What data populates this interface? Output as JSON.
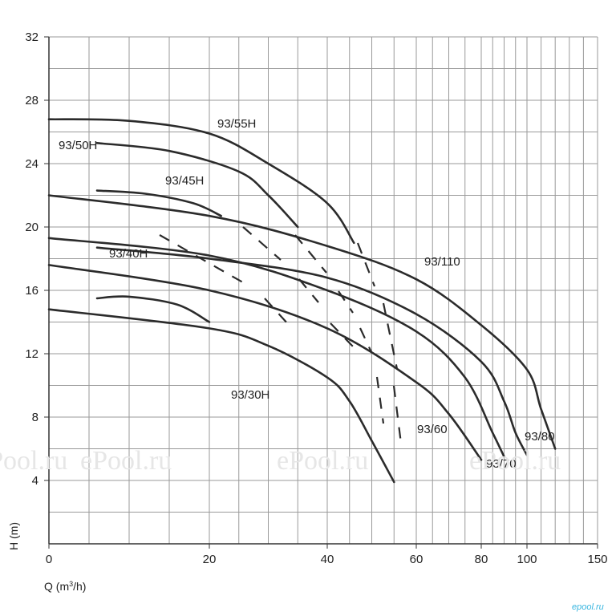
{
  "chart_data": {
    "type": "line",
    "xlabel": "Q (m³/h)",
    "ylabel": "H (m)",
    "x_scale": "nonlinear (compressed beyond 100)",
    "xlim": [
      0,
      150
    ],
    "ylim": [
      0,
      32
    ],
    "x_ticks": [
      "0",
      "20",
      "40",
      "60",
      "80",
      "100",
      "150"
    ],
    "y_ticks": [
      "4",
      "8",
      "12",
      "16",
      "20",
      "24",
      "28",
      "32"
    ],
    "grid": true,
    "series": [
      {
        "name": "93/30H",
        "values": [
          [
            0,
            14.8
          ],
          [
            20,
            13.6
          ],
          [
            30,
            12.5
          ],
          [
            40,
            10.5
          ],
          [
            45,
            9.0
          ],
          [
            50,
            6.5
          ],
          [
            55,
            3.9
          ]
        ]
      },
      {
        "name": "93/40H",
        "values": [
          [
            6,
            15.5
          ],
          [
            10,
            15.6
          ],
          [
            16,
            15.1
          ],
          [
            20,
            14.0
          ]
        ]
      },
      {
        "name": "93/45H",
        "values": [
          [
            6,
            22.3
          ],
          [
            12,
            22.1
          ],
          [
            18,
            21.5
          ],
          [
            22,
            20.7
          ]
        ]
      },
      {
        "name": "93/50H",
        "values": [
          [
            6,
            25.3
          ],
          [
            15,
            24.8
          ],
          [
            25,
            23.5
          ],
          [
            30,
            22.0
          ],
          [
            35,
            20.0
          ]
        ]
      },
      {
        "name": "93/55H",
        "values": [
          [
            0,
            26.8
          ],
          [
            10,
            26.7
          ],
          [
            20,
            25.9
          ],
          [
            30,
            24.0
          ],
          [
            40,
            21.5
          ],
          [
            46,
            19.0
          ]
        ]
      },
      {
        "name": "93/60",
        "values": [
          [
            0,
            17.6
          ],
          [
            20,
            16.0
          ],
          [
            40,
            13.6
          ],
          [
            60,
            10.2
          ],
          [
            70,
            8.2
          ],
          [
            80,
            5.3
          ]
        ]
      },
      {
        "name": "93/70",
        "values": [
          [
            0,
            19.3
          ],
          [
            20,
            18.2
          ],
          [
            40,
            16.0
          ],
          [
            60,
            13.4
          ],
          [
            75,
            10.5
          ],
          [
            85,
            7.0
          ],
          [
            90,
            5.5
          ]
        ]
      },
      {
        "name": "93/80",
        "values": [
          [
            6,
            18.7
          ],
          [
            20,
            18.0
          ],
          [
            40,
            16.8
          ],
          [
            60,
            14.5
          ],
          [
            80,
            11.5
          ],
          [
            90,
            9.0
          ],
          [
            95,
            7.0
          ],
          [
            100,
            5.6
          ]
        ]
      },
      {
        "name": "93/110",
        "values": [
          [
            0,
            22.0
          ],
          [
            20,
            20.7
          ],
          [
            40,
            18.8
          ],
          [
            60,
            16.7
          ],
          [
            80,
            13.8
          ],
          [
            100,
            11.0
          ],
          [
            110,
            8.5
          ],
          [
            120,
            6.0
          ]
        ]
      }
    ],
    "annotations": [
      "dashed iso-efficiency segments between curves"
    ]
  },
  "watermark": {
    "text": "ePool.ru"
  },
  "brand": {
    "text": "epool.ru"
  }
}
